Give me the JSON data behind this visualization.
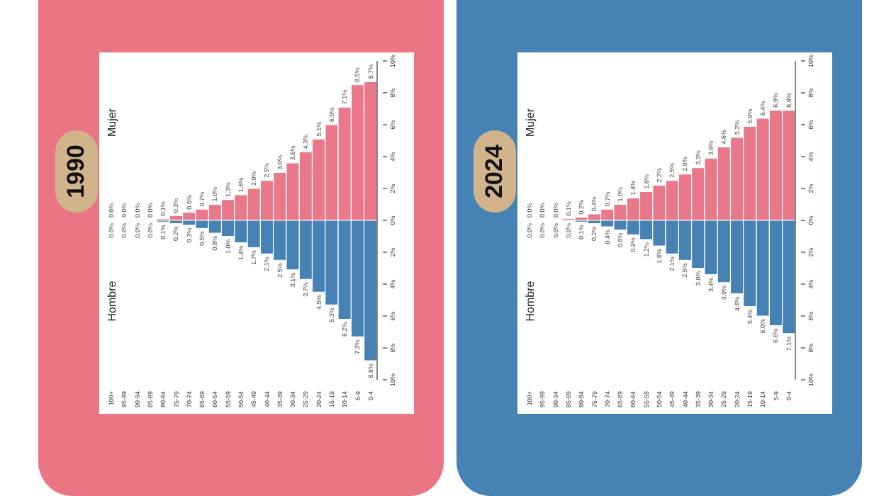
{
  "chart_data": [
    {
      "type": "bar",
      "title": "1990",
      "annotations": [
        "Mujer",
        "Hombre"
      ],
      "stacked": true,
      "categories": [
        "100+",
        "95-99",
        "90-94",
        "85-89",
        "80-84",
        "75-79",
        "70-74",
        "65-69",
        "60-64",
        "55-59",
        "50-54",
        "45-49",
        "40-44",
        "35-39",
        "30-34",
        "25-29",
        "20-24",
        "15-19",
        "10-14",
        "5-9",
        "0-4"
      ],
      "series": [
        {
          "color": "#e8788a",
          "values": [
            0.0,
            0.0,
            0.0,
            0.0,
            0.1,
            0.3,
            0.5,
            0.7,
            1.0,
            1.3,
            1.6,
            2.0,
            2.5,
            3.0,
            3.6,
            4.3,
            5.1,
            6.0,
            7.1,
            8.5,
            8.7
          ],
          "value_labels": [
            "0.0%",
            "0.0%",
            "0.0%",
            "0.0%",
            "0.1%",
            "0.3%",
            "0.5%",
            "0.7%",
            "1.0%",
            "1.3%",
            "1.6%",
            "2.0%",
            "2.5%",
            "3.0%",
            "3.6%",
            "4.3%",
            "5.1%",
            "6.0%",
            "7.1%",
            "8.5%",
            "8.7%"
          ]
        },
        {
          "color": "#4682b4",
          "axis": "y2",
          "values": [
            0.0,
            0.0,
            0.0,
            0.0,
            0.1,
            0.2,
            0.3,
            0.5,
            0.8,
            1.0,
            1.4,
            1.7,
            2.1,
            2.5,
            3.1,
            3.7,
            4.5,
            5.3,
            6.2,
            7.3,
            8.8
          ],
          "value_labels": [
            "0.0%",
            "0.0%",
            "0.0%",
            "0.0%",
            "0.1%",
            "0.2%",
            "0.3%",
            "0.5%",
            "0.8%",
            "1.0%",
            "1.4%",
            "1.7%",
            "2.1%",
            "2.5%",
            "3.1%",
            "3.7%",
            "4.5%",
            "5.3%",
            "6.2%",
            "7.3%",
            "8.8%"
          ]
        }
      ],
      "ylim": [
        -10,
        10
      ],
      "yticks": [
        {
          "value": 0,
          "label": "0%"
        },
        {
          "value": 2,
          "label": "2%"
        },
        {
          "value": 4,
          "label": "4%"
        },
        {
          "value": 6,
          "label": "6%"
        },
        {
          "value": 8,
          "label": "8%"
        },
        {
          "value": 10,
          "label": "10%"
        }
      ],
      "y2lim": [
        10,
        -10
      ],
      "y2ticks": [
        {
          "value": 2,
          "label": "2%"
        },
        {
          "value": 4,
          "label": "4%"
        },
        {
          "value": 6,
          "label": "6%"
        },
        {
          "value": 8,
          "label": "8%"
        },
        {
          "value": 10,
          "label": "10%"
        }
      ]
    },
    {
      "type": "bar",
      "title": "2024",
      "annotations": [
        "Mujer",
        "Hombre"
      ],
      "stacked": true,
      "categories": [
        "100+",
        "95-99",
        "90-94",
        "85-89",
        "80-84",
        "75-79",
        "70-74",
        "65-69",
        "60-64",
        "55-59",
        "50-54",
        "45-49",
        "40-44",
        "35-39",
        "30-34",
        "25-29",
        "20-24",
        "15-19",
        "10-14",
        "5-9",
        "0-4"
      ],
      "series": [
        {
          "color": "#e8788a",
          "values": [
            0.0,
            0.0,
            0.0,
            0.1,
            0.2,
            0.4,
            0.7,
            1.0,
            1.4,
            1.8,
            2.2,
            2.5,
            2.9,
            3.3,
            3.9,
            4.6,
            5.2,
            5.9,
            6.4,
            6.9,
            6.9
          ],
          "value_labels": [
            "0.0%",
            "0.0%",
            "0.0%",
            "0.1%",
            "0.2%",
            "0.4%",
            "0.7%",
            "1.0%",
            "1.4%",
            "1.8%",
            "2.2%",
            "2.5%",
            "2.9%",
            "3.3%",
            "3.9%",
            "4.6%",
            "5.2%",
            "5.9%",
            "6.4%",
            "6.9%",
            "6.9%"
          ]
        },
        {
          "color": "#4682b4",
          "axis": "y2",
          "values": [
            0.0,
            0.0,
            0.0,
            0.0,
            0.1,
            0.2,
            0.4,
            0.6,
            0.9,
            1.2,
            1.6,
            2.1,
            2.5,
            3.0,
            3.4,
            3.9,
            4.6,
            5.4,
            6.0,
            6.6,
            7.1
          ],
          "value_labels": [
            "0.0%",
            "0.0%",
            "0.0%",
            "0.0%",
            "0.1%",
            "0.2%",
            "0.4%",
            "0.6%",
            "0.9%",
            "1.2%",
            "1.6%",
            "2.1%",
            "2.5%",
            "3.0%",
            "3.4%",
            "3.9%",
            "4.6%",
            "5.4%",
            "6.0%",
            "6.6%",
            "7.1%"
          ]
        }
      ],
      "ylim": [
        -10,
        10
      ],
      "yticks": [
        {
          "value": 0,
          "label": "0%"
        },
        {
          "value": 2,
          "label": "2%"
        },
        {
          "value": 4,
          "label": "4%"
        },
        {
          "value": 6,
          "label": "6%"
        },
        {
          "value": 8,
          "label": "8%"
        },
        {
          "value": 10,
          "label": "10%"
        }
      ],
      "y2lim": [
        10,
        -10
      ],
      "y2ticks": [
        {
          "value": 2,
          "label": "2%"
        },
        {
          "value": 4,
          "label": "4%"
        },
        {
          "value": 6,
          "label": "6%"
        },
        {
          "value": 8,
          "label": "8%"
        },
        {
          "value": 10,
          "label": "10%"
        }
      ]
    }
  ]
}
